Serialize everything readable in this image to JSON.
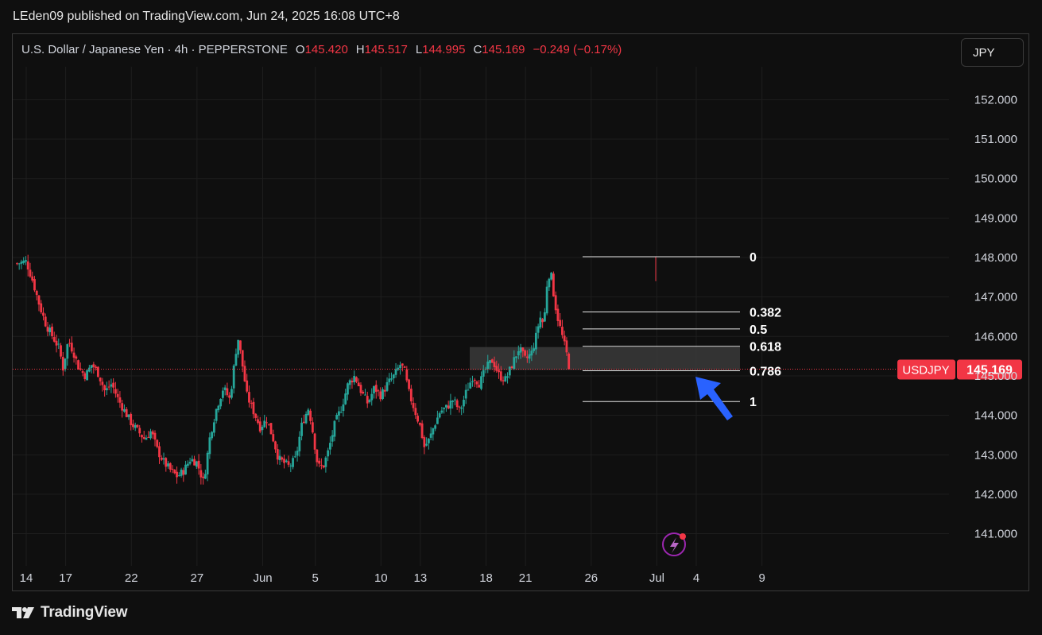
{
  "header": {
    "published": "LEden09 published on TradingView.com, Jun 24, 2025 16:08 UTC+8"
  },
  "legend": {
    "symbol": "U.S. Dollar / Japanese Yen · 4h · PEPPERSTONE",
    "o_label": "O",
    "o_value": "145.420",
    "h_label": "H",
    "h_value": "145.517",
    "l_label": "L",
    "l_value": "144.995",
    "c_label": "C",
    "c_value": "145.169",
    "change": "−0.249 (−0.17%)"
  },
  "currency_button": "JPY",
  "footer": {
    "brand": "TradingView"
  },
  "colors": {
    "up": "#26a69a",
    "down": "#f23645",
    "background": "#0f0f0f",
    "grid": "#1e1e1e",
    "annotation_arrow": "#2962ff"
  },
  "chart_data": {
    "type": "candlestick",
    "symbol_tag": "USDJPY",
    "last_price": "145.169",
    "y_ticks": [
      "152.000",
      "151.000",
      "150.000",
      "149.000",
      "148.000",
      "147.000",
      "146.000",
      "145.000",
      "144.000",
      "143.000",
      "142.000",
      "141.000"
    ],
    "ylim": [
      140.3,
      153.0
    ],
    "x_ticks": [
      {
        "label": "14",
        "day": 14
      },
      {
        "label": "17",
        "day": 17
      },
      {
        "label": "22",
        "day": 22
      },
      {
        "label": "27",
        "day": 27
      },
      {
        "label": "Jun",
        "day": 32
      },
      {
        "label": "5",
        "day": 36
      },
      {
        "label": "10",
        "day": 41
      },
      {
        "label": "13",
        "day": 44
      },
      {
        "label": "18",
        "day": 49
      },
      {
        "label": "21",
        "day": 52
      },
      {
        "label": "26",
        "day": 57
      },
      {
        "label": "Jul",
        "day": 62
      },
      {
        "label": "4",
        "day": 65
      },
      {
        "label": "9",
        "day": 70
      }
    ],
    "fib_levels": [
      {
        "label": "0",
        "price": 148.02
      },
      {
        "label": "0.382",
        "price": 146.62
      },
      {
        "label": "0.5",
        "price": 146.19
      },
      {
        "label": "0.618",
        "price": 145.75
      },
      {
        "label": "0.786",
        "price": 145.13
      },
      {
        "label": "1",
        "price": 144.35
      }
    ],
    "zone": {
      "top": 145.73,
      "bottom": 145.15
    },
    "close_path": [
      [
        13.3,
        147.85
      ],
      [
        14.0,
        147.9
      ],
      [
        14.5,
        147.4
      ],
      [
        15.0,
        146.8
      ],
      [
        15.5,
        146.3
      ],
      [
        16.0,
        146.0
      ],
      [
        16.5,
        145.7
      ],
      [
        16.8,
        145.2
      ],
      [
        17.2,
        145.9
      ],
      [
        17.6,
        145.6
      ],
      [
        18.0,
        145.2
      ],
      [
        18.5,
        145.0
      ],
      [
        19.0,
        145.3
      ],
      [
        19.5,
        145.05
      ],
      [
        20.0,
        144.6
      ],
      [
        20.5,
        144.8
      ],
      [
        21.0,
        144.4
      ],
      [
        21.5,
        144.1
      ],
      [
        22.0,
        143.8
      ],
      [
        22.5,
        143.6
      ],
      [
        23.0,
        143.4
      ],
      [
        23.5,
        143.6
      ],
      [
        24.0,
        143.1
      ],
      [
        24.5,
        142.8
      ],
      [
        25.0,
        142.6
      ],
      [
        25.5,
        142.45
      ],
      [
        26.0,
        142.6
      ],
      [
        26.5,
        142.9
      ],
      [
        27.0,
        142.8
      ],
      [
        27.5,
        142.3
      ],
      [
        28.0,
        143.5
      ],
      [
        28.5,
        144.2
      ],
      [
        29.0,
        144.7
      ],
      [
        29.5,
        144.4
      ],
      [
        29.8,
        145.2
      ],
      [
        30.1,
        146.0
      ],
      [
        30.4,
        145.4
      ],
      [
        30.8,
        144.5
      ],
      [
        31.3,
        144.1
      ],
      [
        31.8,
        143.7
      ],
      [
        32.3,
        143.9
      ],
      [
        32.8,
        143.4
      ],
      [
        33.2,
        142.9
      ],
      [
        33.6,
        142.8
      ],
      [
        34.0,
        142.7
      ],
      [
        34.5,
        142.9
      ],
      [
        35.0,
        143.8
      ],
      [
        35.5,
        144.2
      ],
      [
        35.8,
        143.6
      ],
      [
        36.2,
        142.7
      ],
      [
        36.6,
        142.7
      ],
      [
        37.0,
        143.1
      ],
      [
        37.5,
        143.8
      ],
      [
        38.0,
        144.2
      ],
      [
        38.5,
        144.8
      ],
      [
        39.0,
        145.0
      ],
      [
        39.5,
        144.6
      ],
      [
        40.0,
        144.3
      ],
      [
        40.5,
        144.7
      ],
      [
        41.0,
        144.5
      ],
      [
        41.5,
        144.8
      ],
      [
        42.0,
        145.0
      ],
      [
        42.5,
        145.3
      ],
      [
        42.8,
        145.1
      ],
      [
        43.1,
        144.6
      ],
      [
        43.5,
        144.2
      ],
      [
        44.0,
        143.7
      ],
      [
        44.3,
        143.2
      ],
      [
        44.7,
        143.4
      ],
      [
        45.0,
        143.7
      ],
      [
        45.5,
        144.1
      ],
      [
        46.0,
        144.2
      ],
      [
        46.5,
        144.4
      ],
      [
        47.0,
        144.1
      ],
      [
        47.5,
        144.6
      ],
      [
        48.0,
        145.0
      ],
      [
        48.5,
        144.8
      ],
      [
        49.0,
        145.2
      ],
      [
        49.5,
        145.4
      ],
      [
        50.0,
        145.0
      ],
      [
        50.5,
        144.9
      ],
      [
        51.0,
        145.3
      ],
      [
        51.5,
        145.7
      ],
      [
        52.0,
        145.4
      ],
      [
        52.5,
        145.6
      ],
      [
        52.8,
        146.0
      ],
      [
        53.1,
        146.5
      ],
      [
        53.4,
        146.3
      ],
      [
        53.7,
        147.6
      ],
      [
        54.0,
        147.5
      ],
      [
        54.2,
        146.9
      ],
      [
        54.5,
        146.4
      ],
      [
        54.8,
        146.0
      ],
      [
        55.1,
        145.6
      ],
      [
        55.4,
        145.17
      ]
    ]
  }
}
